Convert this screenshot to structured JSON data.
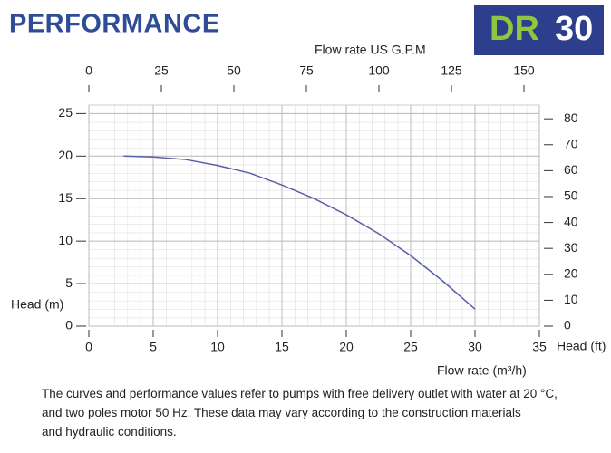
{
  "header": {
    "title": "PERFORMANCE",
    "badge_model": "DR",
    "badge_number": "30"
  },
  "chart_data": {
    "type": "line",
    "x_label": "Flow rate (m³/h)",
    "x2_label": "Flow rate US  G.P.M",
    "y_label": "Head (m)",
    "y2_label": "Head (ft)",
    "x": [
      2.7,
      5,
      7.5,
      10,
      12.5,
      15,
      17.5,
      20,
      22.5,
      25,
      27.5,
      30
    ],
    "series": [
      {
        "color": "#5a5fa8",
        "values": [
          20,
          19.9,
          19.6,
          18.9,
          18,
          16.6,
          15,
          13.1,
          10.9,
          8.3,
          5.3,
          2
        ]
      }
    ],
    "xlim": [
      0,
      35
    ],
    "xticks": [
      0,
      5,
      10,
      15,
      20,
      25,
      30,
      35
    ],
    "x2lim": [
      0,
      155.3
    ],
    "x2ticks": [
      0,
      25,
      50,
      75,
      100,
      125,
      150
    ],
    "ylim": [
      0,
      26
    ],
    "yticks": [
      0,
      5,
      10,
      15,
      20,
      25
    ],
    "y2lim": [
      0,
      85.3
    ],
    "y2ticks": [
      0,
      10,
      20,
      30,
      40,
      50,
      60,
      70,
      80
    ],
    "grid": true
  },
  "footnote": [
    "The curves and performance values refer to pumps with free delivery outlet with water at 20 °C,",
    "and two poles motor 50 Hz. These data may vary according to the construction materials",
    "and hydraulic conditions."
  ]
}
